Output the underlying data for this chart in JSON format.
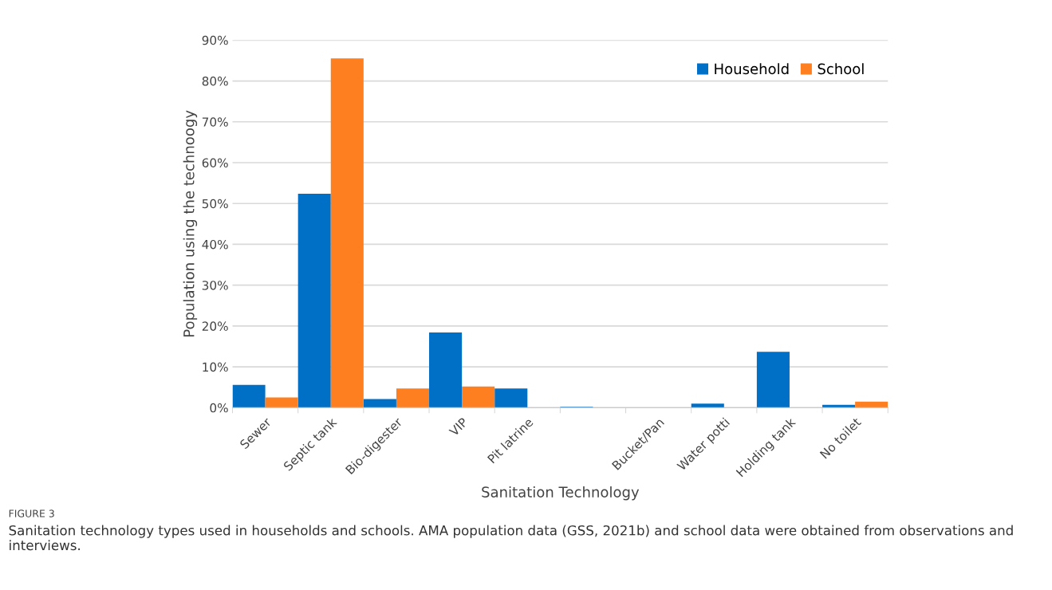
{
  "chart_data": {
    "type": "bar",
    "categories": [
      "Sewer",
      "Septic tank",
      "Bio-digester",
      "VIP",
      "Pit latrine",
      null,
      "Bucket/Pan",
      "Water potti",
      "Holding tank",
      "No toilet"
    ],
    "series": [
      {
        "name": "Household",
        "color": "#0070c6",
        "values": [
          5.6,
          52.4,
          2.1,
          18.4,
          4.7,
          0.2,
          0,
          1.0,
          13.7,
          0.7
        ]
      },
      {
        "name": "School",
        "color": "#fe7f1f",
        "values": [
          2.5,
          85.5,
          4.7,
          5.2,
          0,
          0,
          0,
          0,
          0,
          1.5
        ]
      }
    ],
    "xlabel": "Sanitation Technology",
    "ylabel": "Population using the technoogy",
    "ylim": [
      0,
      90
    ],
    "yticks": [
      {
        "value": 0,
        "label": "0%"
      },
      {
        "value": 10,
        "label": "10%"
      },
      {
        "value": 20,
        "label": "20%"
      },
      {
        "value": 30,
        "label": "30%"
      },
      {
        "value": 40,
        "label": "40%"
      },
      {
        "value": 50,
        "label": "50%"
      },
      {
        "value": 60,
        "label": "60%"
      },
      {
        "value": 70,
        "label": "70%"
      },
      {
        "value": 80,
        "label": "80%"
      },
      {
        "value": 90,
        "label": "90%"
      }
    ],
    "grid": "y",
    "legend": "top right",
    "annotations": [
      "FIGURE 3",
      "Sanitation technology types used in households and schools. AMA population data (GSS, 2021b) and school data were obtained from observations and interviews."
    ]
  }
}
